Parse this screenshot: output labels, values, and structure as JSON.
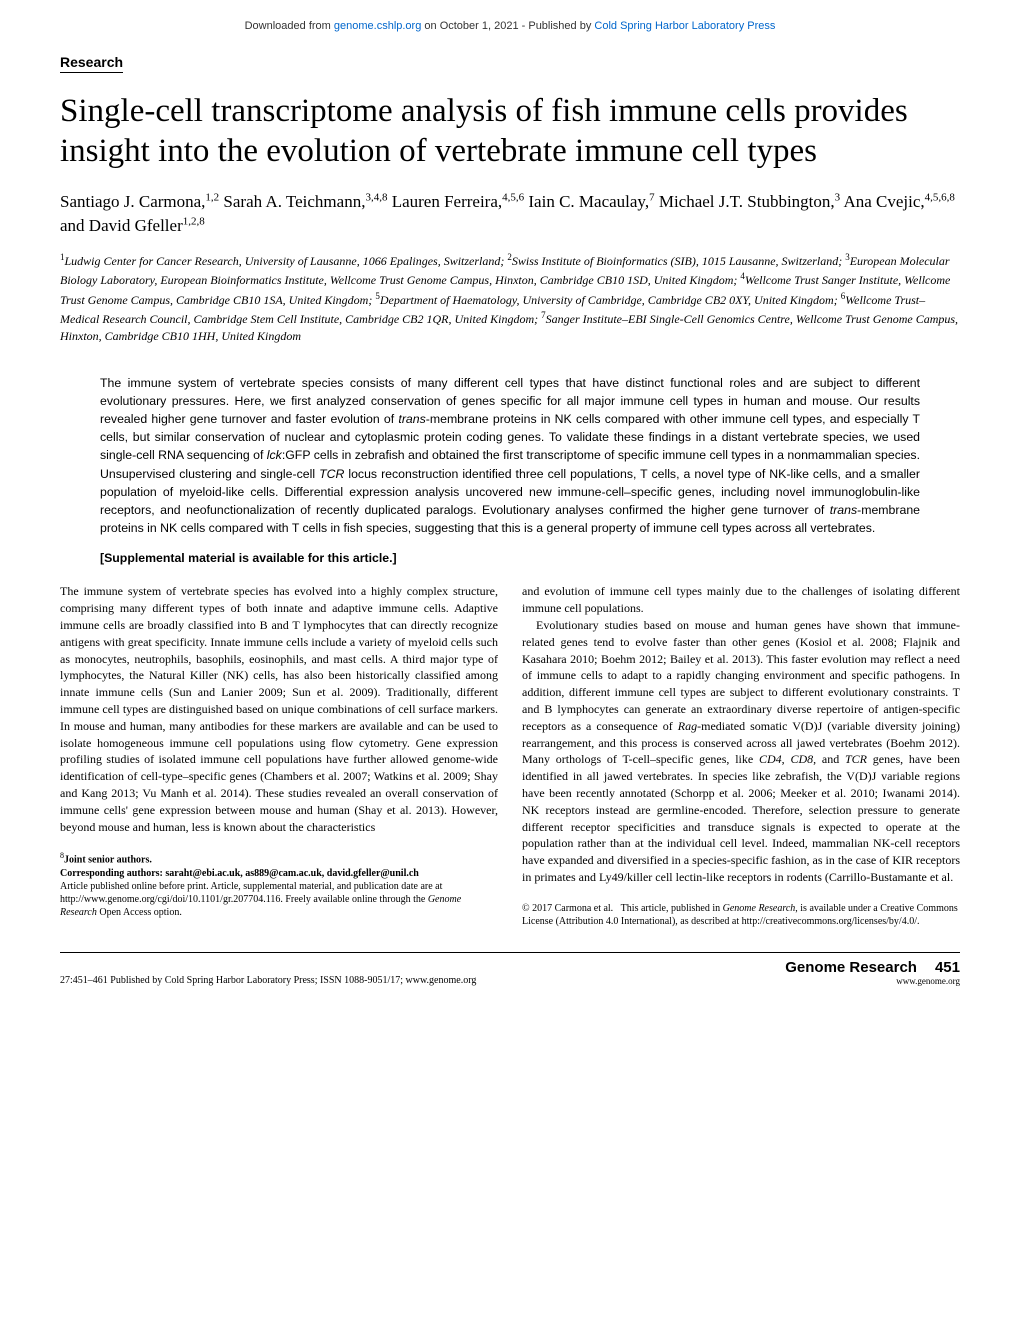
{
  "header": {
    "download_prefix": "Downloaded from ",
    "download_url": "genome.cshlp.org",
    "download_mid": " on October 1, 2021 - Published by ",
    "publisher": "Cold Spring Harbor Laboratory Press"
  },
  "section": "Research",
  "title": "Single-cell transcriptome analysis of fish immune cells provides insight into the evolution of vertebrate immune cell types",
  "authors_html": "Santiago J. Carmona,<sup>1,2</sup> Sarah A. Teichmann,<sup>3,4,8</sup> Lauren Ferreira,<sup>4,5,6</sup> Iain C. Macaulay,<sup>7</sup> Michael J.T. Stubbington,<sup>3</sup> Ana Cvejic,<sup>4,5,6,8</sup> and David Gfeller<sup>1,2,8</sup>",
  "affiliations_html": "<sup>1</sup>Ludwig Center for Cancer Research, University of Lausanne, 1066 Epalinges, Switzerland; <sup>2</sup>Swiss Institute of Bioinformatics (SIB), 1015 Lausanne, Switzerland; <sup>3</sup>European Molecular Biology Laboratory, European Bioinformatics Institute, Wellcome Trust Genome Campus, Hinxton, Cambridge CB10 1SD, United Kingdom; <sup>4</sup>Wellcome Trust Sanger Institute, Wellcome Trust Genome Campus, Cambridge CB10 1SA, United Kingdom; <sup>5</sup>Department of Haematology, University of Cambridge, Cambridge CB2 0XY, United Kingdom; <sup>6</sup>Wellcome Trust–Medical Research Council, Cambridge Stem Cell Institute, Cambridge CB2 1QR, United Kingdom; <sup>7</sup>Sanger Institute–EBI Single-Cell Genomics Centre, Wellcome Trust Genome Campus, Hinxton, Cambridge CB10 1HH, United Kingdom",
  "abstract_html": "The immune system of vertebrate species consists of many different cell types that have distinct functional roles and are subject to different evolutionary pressures. Here, we first analyzed conservation of genes specific for all major immune cell types in human and mouse. Our results revealed higher gene turnover and faster evolution of <i>trans</i>-membrane proteins in NK cells compared with other immune cell types, and especially T cells, but similar conservation of nuclear and cytoplasmic protein coding genes. To validate these findings in a distant vertebrate species, we used single-cell RNA sequencing of <i>lck</i>:GFP cells in zebrafish and obtained the first transcriptome of specific immune cell types in a nonmammalian species. Unsupervised clustering and single-cell <i>TCR</i> locus reconstruction identified three cell populations, T cells, a novel type of NK-like cells, and a smaller population of myeloid-like cells. Differential expression analysis uncovered new immune-cell–specific genes, including novel immunoglobulin-like receptors, and neofunctionalization of recently duplicated paralogs. Evolutionary analyses confirmed the higher gene turnover of <i>trans</i>-membrane proteins in NK cells compared with T cells in fish species, suggesting that this is a general property of immune cell types across all vertebrates.",
  "supplemental": "[Supplemental material is available for this article.]",
  "body": {
    "col1_p1": "The immune system of vertebrate species has evolved into a highly complex structure, comprising many different types of both innate and adaptive immune cells. Adaptive immune cells are broadly classified into B and T lymphocytes that can directly recognize antigens with great specificity. Innate immune cells include a variety of myeloid cells such as monocytes, neutrophils, basophils, eosinophils, and mast cells. A third major type of lymphocytes, the Natural Killer (NK) cells, has also been historically classified among innate immune cells (Sun and Lanier 2009; Sun et al. 2009). Traditionally, different immune cell types are distinguished based on unique combinations of cell surface markers. In mouse and human, many antibodies for these markers are available and can be used to isolate homogeneous immune cell populations using flow cytometry. Gene expression profiling studies of isolated immune cell populations have further allowed genome-wide identification of cell-type–specific genes (Chambers et al. 2007; Watkins et al. 2009; Shay and Kang 2013; Vu Manh et al. 2014). These studies revealed an overall conservation of immune cells' gene expression between mouse and human (Shay et al. 2013). However, beyond mouse and human, less is known about the characteristics",
    "col2_p1": "and evolution of immune cell types mainly due to the challenges of isolating different immune cell populations.",
    "col2_p2_html": "Evolutionary studies based on mouse and human genes have shown that immune-related genes tend to evolve faster than other genes (Kosiol et al. 2008; Flajnik and Kasahara 2010; Boehm 2012; Bailey et al. 2013). This faster evolution may reflect a need of immune cells to adapt to a rapidly changing environment and specific pathogens. In addition, different immune cell types are subject to different evolutionary constraints. T and B lymphocytes can generate an extraordinary diverse repertoire of antigen-specific receptors as a consequence of <i>Rag</i>-mediated somatic V(D)J (variable diversity joining) rearrangement, and this process is conserved across all jawed vertebrates (Boehm 2012). Many orthologs of T-cell–specific genes, like <i>CD4</i>, <i>CD8</i>, and <i>TCR</i> genes, have been identified in all jawed vertebrates. In species like zebrafish, the V(D)J variable regions have been recently annotated (Schorpp et al. 2006; Meeker et al. 2010; Iwanami 2014). NK receptors instead are germline-encoded. Therefore, selection pressure to generate different receptor specificities and transduce signals is expected to operate at the population rather than at the individual cell level. Indeed, mammalian NK-cell receptors have expanded and diversified in a species-specific fashion, as in the case of KIR receptors in primates and Ly49/killer cell lectin-like receptors in rodents (Carrillo-Bustamante et al."
  },
  "footnotes": {
    "joint": "Joint senior authors.",
    "corresponding_label": "Corresponding authors: ",
    "corresponding_emails": "saraht@ebi.ac.uk, as889@cam.ac.uk, david.gfeller@unil.ch",
    "article_info_html": "Article published online before print. Article, supplemental material, and publication date are at http://www.genome.org/cgi/doi/10.1101/gr.207704.116. Freely available online through the <i>Genome Research</i> Open Access option."
  },
  "copyright_html": "© 2017 Carmona et al.&nbsp;&nbsp;&nbsp;This article, published in <i>Genome Research</i>, is available under a Creative Commons License (Attribution 4.0 International), as described at http://creativecommons.org/licenses/by/4.0/.",
  "footer": {
    "left": "27:451–461 Published by Cold Spring Harbor Laboratory Press; ISSN 1088-9051/17; www.genome.org",
    "journal": "Genome Research",
    "page": "451",
    "url": "www.genome.org"
  },
  "colors": {
    "link": "#0066cc",
    "text": "#000000",
    "background": "#ffffff"
  }
}
